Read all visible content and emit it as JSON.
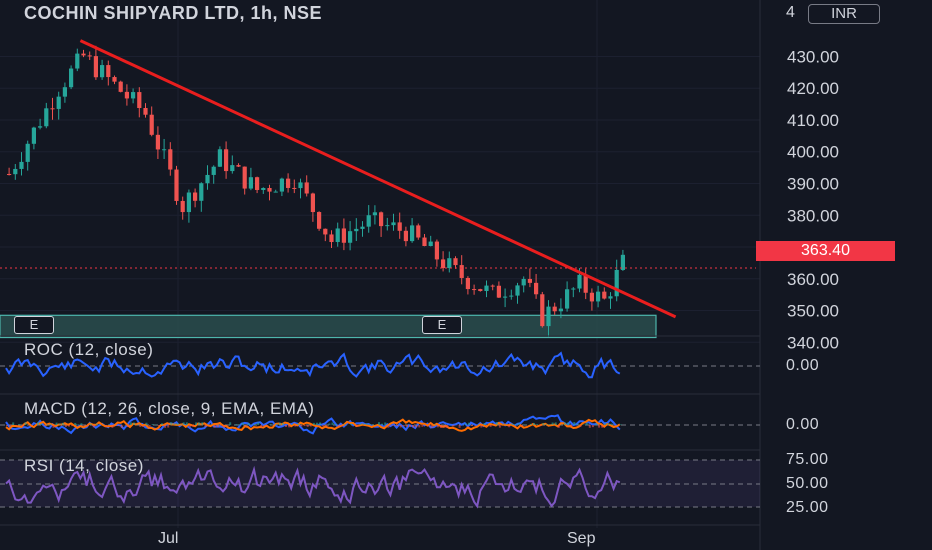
{
  "chart_title": "COCHIN SHIPYARD LTD, 1h, NSE",
  "currency_label": "INR",
  "last_price_label": "363.40",
  "colors": {
    "background": "#131722",
    "up": "#26a69a",
    "down": "#ef5350",
    "trendline": "#e91e1e",
    "zone_fill": "#2a4d4e",
    "zone_border": "#4db6ac",
    "roc": "#2962ff",
    "macd": "#2962ff",
    "signal": "#ff6d00",
    "rsi": "#7e57c2",
    "price_tag": "#f23645"
  },
  "earnings_markers": [
    "E",
    "E"
  ],
  "panes": {
    "roc": {
      "title": "ROC (12, close)",
      "tick": "0.00"
    },
    "macd": {
      "title": "MACD (12, 26, close, 9, EMA, EMA)",
      "tick": "0.00"
    },
    "rsi": {
      "title": "RSI (14, close)",
      "ticks": [
        "75.00",
        "50.00",
        "25.00"
      ]
    }
  },
  "time_axis": [
    "Jul",
    "Sep"
  ],
  "price_axis_top_partial": "4",
  "chart_data": {
    "type": "candlestick",
    "title": "COCHIN SHIPYARD LTD, 1h, NSE",
    "y_ticks": [
      "430.00",
      "420.00",
      "410.00",
      "400.00",
      "390.00",
      "380.00",
      "370.00",
      "360.00",
      "350.00",
      "340.00"
    ],
    "ylim": [
      336,
      444
    ],
    "x_ticks": [
      "Jul",
      "Sep"
    ],
    "last_price": 363.4,
    "trendline": {
      "start": {
        "bar": 12,
        "price": 435
      },
      "end": {
        "bar": 108,
        "price": 348
      }
    },
    "support_zone": {
      "low": 341.5,
      "high": 348.5
    },
    "approx_close_path": [
      {
        "bar": 0,
        "price": 393
      },
      {
        "bar": 8,
        "price": 420
      },
      {
        "bar": 12,
        "price": 430
      },
      {
        "bar": 22,
        "price": 412
      },
      {
        "bar": 28,
        "price": 383
      },
      {
        "bar": 34,
        "price": 398
      },
      {
        "bar": 40,
        "price": 388
      },
      {
        "bar": 46,
        "price": 392
      },
      {
        "bar": 52,
        "price": 372
      },
      {
        "bar": 58,
        "price": 378
      },
      {
        "bar": 64,
        "price": 375
      },
      {
        "bar": 72,
        "price": 362
      },
      {
        "bar": 78,
        "price": 355
      },
      {
        "bar": 83,
        "price": 360
      },
      {
        "bar": 86,
        "price": 348
      },
      {
        "bar": 92,
        "price": 358
      },
      {
        "bar": 96,
        "price": 353
      },
      {
        "bar": 99,
        "price": 365
      }
    ],
    "indicators": {
      "roc": {
        "name": "ROC (12, close)",
        "zero": "0.00"
      },
      "macd": {
        "name": "MACD (12, 26, close, 9, EMA, EMA)",
        "zero": "0.00"
      },
      "rsi": {
        "name": "RSI (14, close)",
        "levels": [
          75,
          50,
          25
        ]
      }
    }
  }
}
